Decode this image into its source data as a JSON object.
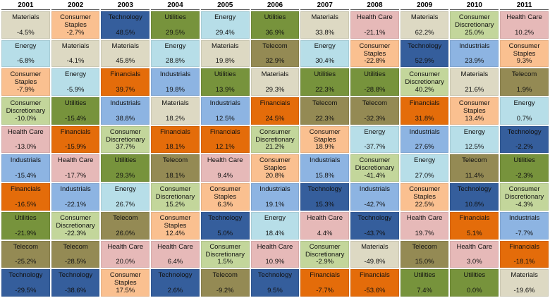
{
  "chart_data": {
    "type": "table",
    "years": [
      "2001",
      "2002",
      "2003",
      "2004",
      "2005",
      "2006",
      "2007",
      "2008",
      "2009",
      "2010",
      "2011"
    ],
    "colors": {
      "Materials": "#ddd9c3",
      "Consumer Staples": "#fac090",
      "Technology": "#355e9c",
      "Utilities": "#77933c",
      "Energy": "#b7dee8",
      "Health Care": "#e6b9b8",
      "Industrials": "#8db4e2",
      "Financials": "#e46c0a",
      "Consumer Discretionary": "#c3d69b",
      "Telecom": "#948a54"
    },
    "columns": [
      [
        {
          "sector": "Materials",
          "value": "-4.5%"
        },
        {
          "sector": "Energy",
          "value": "-6.8%"
        },
        {
          "sector": "Consumer Staples",
          "value": "-7.9%"
        },
        {
          "sector": "Consumer Discretionary",
          "value": "-10.0%"
        },
        {
          "sector": "Health Care",
          "value": "-13.0%"
        },
        {
          "sector": "Industrials",
          "value": "-15.4%"
        },
        {
          "sector": "Financials",
          "value": "-16.5%"
        },
        {
          "sector": "Utilities",
          "value": "-21.9%"
        },
        {
          "sector": "Telecom",
          "value": "-25.2%"
        },
        {
          "sector": "Technology",
          "value": "-29.5%"
        }
      ],
      [
        {
          "sector": "Consumer Staples",
          "value": "-2.7%"
        },
        {
          "sector": "Materials",
          "value": "-4.1%"
        },
        {
          "sector": "Energy",
          "value": "-5.9%"
        },
        {
          "sector": "Utilities",
          "value": "-15.4%"
        },
        {
          "sector": "Financials",
          "value": "-15.9%"
        },
        {
          "sector": "Health Care",
          "value": "-17.7%"
        },
        {
          "sector": "Industrials",
          "value": "-22.1%"
        },
        {
          "sector": "Consumer Discretionary",
          "value": "-22.3%"
        },
        {
          "sector": "Telecom",
          "value": "-28.5%"
        },
        {
          "sector": "Technology",
          "value": "-38.6%"
        }
      ],
      [
        {
          "sector": "Technology",
          "value": "48.5%"
        },
        {
          "sector": "Materials",
          "value": "45.8%"
        },
        {
          "sector": "Financials",
          "value": "39.7%"
        },
        {
          "sector": "Industrials",
          "value": "38.8%"
        },
        {
          "sector": "Consumer Discretionary",
          "value": "37.7%"
        },
        {
          "sector": "Utilities",
          "value": "29.3%"
        },
        {
          "sector": "Energy",
          "value": "26.7%"
        },
        {
          "sector": "Telecom",
          "value": "26.0%"
        },
        {
          "sector": "Health Care",
          "value": "20.0%"
        },
        {
          "sector": "Consumer Staples",
          "value": "17.5%"
        }
      ],
      [
        {
          "sector": "Utilities",
          "value": "29.5%"
        },
        {
          "sector": "Energy",
          "value": "28.8%"
        },
        {
          "sector": "Industrials",
          "value": "19.8%"
        },
        {
          "sector": "Materials",
          "value": "18.2%"
        },
        {
          "sector": "Financials",
          "value": "18.1%"
        },
        {
          "sector": "Telecom",
          "value": "18.1%"
        },
        {
          "sector": "Consumer Discretionary",
          "value": "15.2%"
        },
        {
          "sector": "Consumer Staples",
          "value": "12.4%"
        },
        {
          "sector": "Health Care",
          "value": "6.4%"
        },
        {
          "sector": "Technology",
          "value": "2.6%"
        }
      ],
      [
        {
          "sector": "Energy",
          "value": "29.4%"
        },
        {
          "sector": "Materials",
          "value": "19.8%"
        },
        {
          "sector": "Utilities",
          "value": "13.9%"
        },
        {
          "sector": "Industrials",
          "value": "12.5%"
        },
        {
          "sector": "Financials",
          "value": "12.1%"
        },
        {
          "sector": "Health Care",
          "value": "9.4%"
        },
        {
          "sector": "Consumer Staples",
          "value": "6.3%"
        },
        {
          "sector": "Technology",
          "value": "5.0%"
        },
        {
          "sector": "Consumer Discretionary",
          "value": "1.5%"
        },
        {
          "sector": "Telecom",
          "value": "-9.2%"
        }
      ],
      [
        {
          "sector": "Utilities",
          "value": "36.9%"
        },
        {
          "sector": "Telecom",
          "value": "32.9%"
        },
        {
          "sector": "Materials",
          "value": "29.3%"
        },
        {
          "sector": "Financials",
          "value": "24.5%"
        },
        {
          "sector": "Consumer Discretionary",
          "value": "21.2%"
        },
        {
          "sector": "Consumer Staples",
          "value": "20.8%"
        },
        {
          "sector": "Industrials",
          "value": "19.1%"
        },
        {
          "sector": "Energy",
          "value": "18.4%"
        },
        {
          "sector": "Health Care",
          "value": "10.9%"
        },
        {
          "sector": "Technology",
          "value": "9.5%"
        }
      ],
      [
        {
          "sector": "Materials",
          "value": "33.8%"
        },
        {
          "sector": "Energy",
          "value": "30.4%"
        },
        {
          "sector": "Utilities",
          "value": "22.3%"
        },
        {
          "sector": "Telecom",
          "value": "22.3%"
        },
        {
          "sector": "Consumer Staples",
          "value": "18.9%"
        },
        {
          "sector": "Industrials",
          "value": "15.8%"
        },
        {
          "sector": "Technology",
          "value": "15.3%"
        },
        {
          "sector": "Health Care",
          "value": "4.4%"
        },
        {
          "sector": "Consumer Discretionary",
          "value": "-2.9%"
        },
        {
          "sector": "Financials",
          "value": "-7.7%"
        }
      ],
      [
        {
          "sector": "Health Care",
          "value": "-21.1%"
        },
        {
          "sector": "Consumer Staples",
          "value": "-22.8%"
        },
        {
          "sector": "Utilities",
          "value": "-28.8%"
        },
        {
          "sector": "Telecom",
          "value": "-32.3%"
        },
        {
          "sector": "Energy",
          "value": "-37.7%"
        },
        {
          "sector": "Consumer Discretionary",
          "value": "-41.4%"
        },
        {
          "sector": "Industrials",
          "value": "-42.7%"
        },
        {
          "sector": "Technology",
          "value": "-43.7%"
        },
        {
          "sector": "Materials",
          "value": "-49.8%"
        },
        {
          "sector": "Financials",
          "value": "-53.6%"
        }
      ],
      [
        {
          "sector": "Materials",
          "value": "62.2%"
        },
        {
          "sector": "Technology",
          "value": "52.9%"
        },
        {
          "sector": "Consumer Discretionary",
          "value": "40.2%"
        },
        {
          "sector": "Financials",
          "value": "31.8%"
        },
        {
          "sector": "Industrials",
          "value": "27.6%"
        },
        {
          "sector": "Energy",
          "value": "27.0%"
        },
        {
          "sector": "Consumer Staples",
          "value": "22.5%"
        },
        {
          "sector": "Health Care",
          "value": "19.7%"
        },
        {
          "sector": "Telecom",
          "value": "15.0%"
        },
        {
          "sector": "Utilities",
          "value": "7.4%"
        }
      ],
      [
        {
          "sector": "Consumer Discretionary",
          "value": "25.0%"
        },
        {
          "sector": "Industrials",
          "value": "23.9%"
        },
        {
          "sector": "Materials",
          "value": "21.6%"
        },
        {
          "sector": "Consumer Staples",
          "value": "13.4%"
        },
        {
          "sector": "Energy",
          "value": "12.5%"
        },
        {
          "sector": "Telecom",
          "value": "11.4%"
        },
        {
          "sector": "Technology",
          "value": "10.8%"
        },
        {
          "sector": "Financials",
          "value": "5.1%"
        },
        {
          "sector": "Health Care",
          "value": "3.0%"
        },
        {
          "sector": "Utilities",
          "value": "0.0%"
        }
      ],
      [
        {
          "sector": "Health Care",
          "value": "10.2%"
        },
        {
          "sector": "Consumer Staples",
          "value": "9.3%"
        },
        {
          "sector": "Telecom",
          "value": "1.9%"
        },
        {
          "sector": "Energy",
          "value": "0.7%"
        },
        {
          "sector": "Technology",
          "value": "-2.2%"
        },
        {
          "sector": "Utilities",
          "value": "-2.3%"
        },
        {
          "sector": "Consumer Discretionary",
          "value": "-4.3%"
        },
        {
          "sector": "Industrials",
          "value": "-7.7%"
        },
        {
          "sector": "Financials",
          "value": "-18.1%"
        },
        {
          "sector": "Materials",
          "value": "-19.6%"
        }
      ]
    ]
  }
}
